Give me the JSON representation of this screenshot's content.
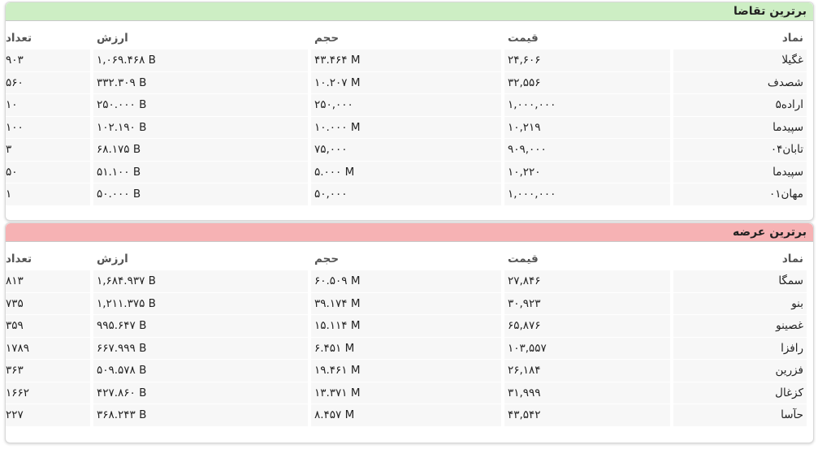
{
  "demand": {
    "title": "برترین تقاضا",
    "headers": {
      "symbol": "نماد",
      "price": "قیمت",
      "volume": "حجم",
      "value": "ارزش",
      "count": "تعداد"
    },
    "rows": [
      {
        "symbol": "غگیلا",
        "price": "۲۴,۶۰۶",
        "volume": "۴۳.۴۶۴ M",
        "value": "۱,۰۶۹.۴۶۸ B",
        "count": "۹۰۳"
      },
      {
        "symbol": "شصدف",
        "price": "۳۲,۵۵۶",
        "volume": "۱۰.۲۰۷ M",
        "value": "۳۳۲.۳۰۹ B",
        "count": "۵۶۰"
      },
      {
        "symbol": "اراده۵",
        "price": "۱,۰۰۰,۰۰۰",
        "volume": "۲۵۰,۰۰۰",
        "value": "۲۵۰.۰۰۰ B",
        "count": "۱۰"
      },
      {
        "symbol": "سپیدما",
        "price": "۱۰,۲۱۹",
        "volume": "۱۰.۰۰۰ M",
        "value": "۱۰۲.۱۹۰ B",
        "count": "۱۰۰"
      },
      {
        "symbol": "تابان۰۴",
        "price": "۹۰۹,۰۰۰",
        "volume": "۷۵,۰۰۰",
        "value": "۶۸.۱۷۵ B",
        "count": "۳"
      },
      {
        "symbol": "سپیدما",
        "price": "۱۰,۲۲۰",
        "volume": "۵.۰۰۰ M",
        "value": "۵۱.۱۰۰ B",
        "count": "۵۰"
      },
      {
        "symbol": "مهان۰۱",
        "price": "۱,۰۰۰,۰۰۰",
        "volume": "۵۰,۰۰۰",
        "value": "۵۰.۰۰۰ B",
        "count": "۱"
      }
    ]
  },
  "supply": {
    "title": "برترین عرضه",
    "headers": {
      "symbol": "نماد",
      "price": "قیمت",
      "volume": "حجم",
      "value": "ارزش",
      "count": "تعداد"
    },
    "rows": [
      {
        "symbol": "سمگا",
        "price": "۲۷,۸۴۶",
        "volume": "۶۰.۵۰۹ M",
        "value": "۱,۶۸۴.۹۳۷ B",
        "count": "۸۱۳"
      },
      {
        "symbol": "بنو",
        "price": "۳۰,۹۲۳",
        "volume": "۳۹.۱۷۴ M",
        "value": "۱,۲۱۱.۳۷۵ B",
        "count": "۷۳۵"
      },
      {
        "symbol": "غصینو",
        "price": "۶۵,۸۷۶",
        "volume": "۱۵.۱۱۴ M",
        "value": "۹۹۵.۶۴۷ B",
        "count": "۳۵۹"
      },
      {
        "symbol": "رافزا",
        "price": "۱۰۳,۵۵۷",
        "volume": "۶.۴۵۱ M",
        "value": "۶۶۷.۹۹۹ B",
        "count": "۱۷۸۹"
      },
      {
        "symbol": "فزرین",
        "price": "۲۶,۱۸۴",
        "volume": "۱۹.۴۶۱ M",
        "value": "۵۰۹.۵۷۸ B",
        "count": "۳۶۳"
      },
      {
        "symbol": "کزغال",
        "price": "۳۱,۹۹۹",
        "volume": "۱۳.۳۷۱ M",
        "value": "۴۲۷.۸۶۰ B",
        "count": "۱۶۶۲"
      },
      {
        "symbol": "حآسا",
        "price": "۴۳,۵۴۲",
        "volume": "۸.۴۵۷ M",
        "value": "۳۶۸.۲۴۳ B",
        "count": "۲۲۷"
      }
    ]
  }
}
